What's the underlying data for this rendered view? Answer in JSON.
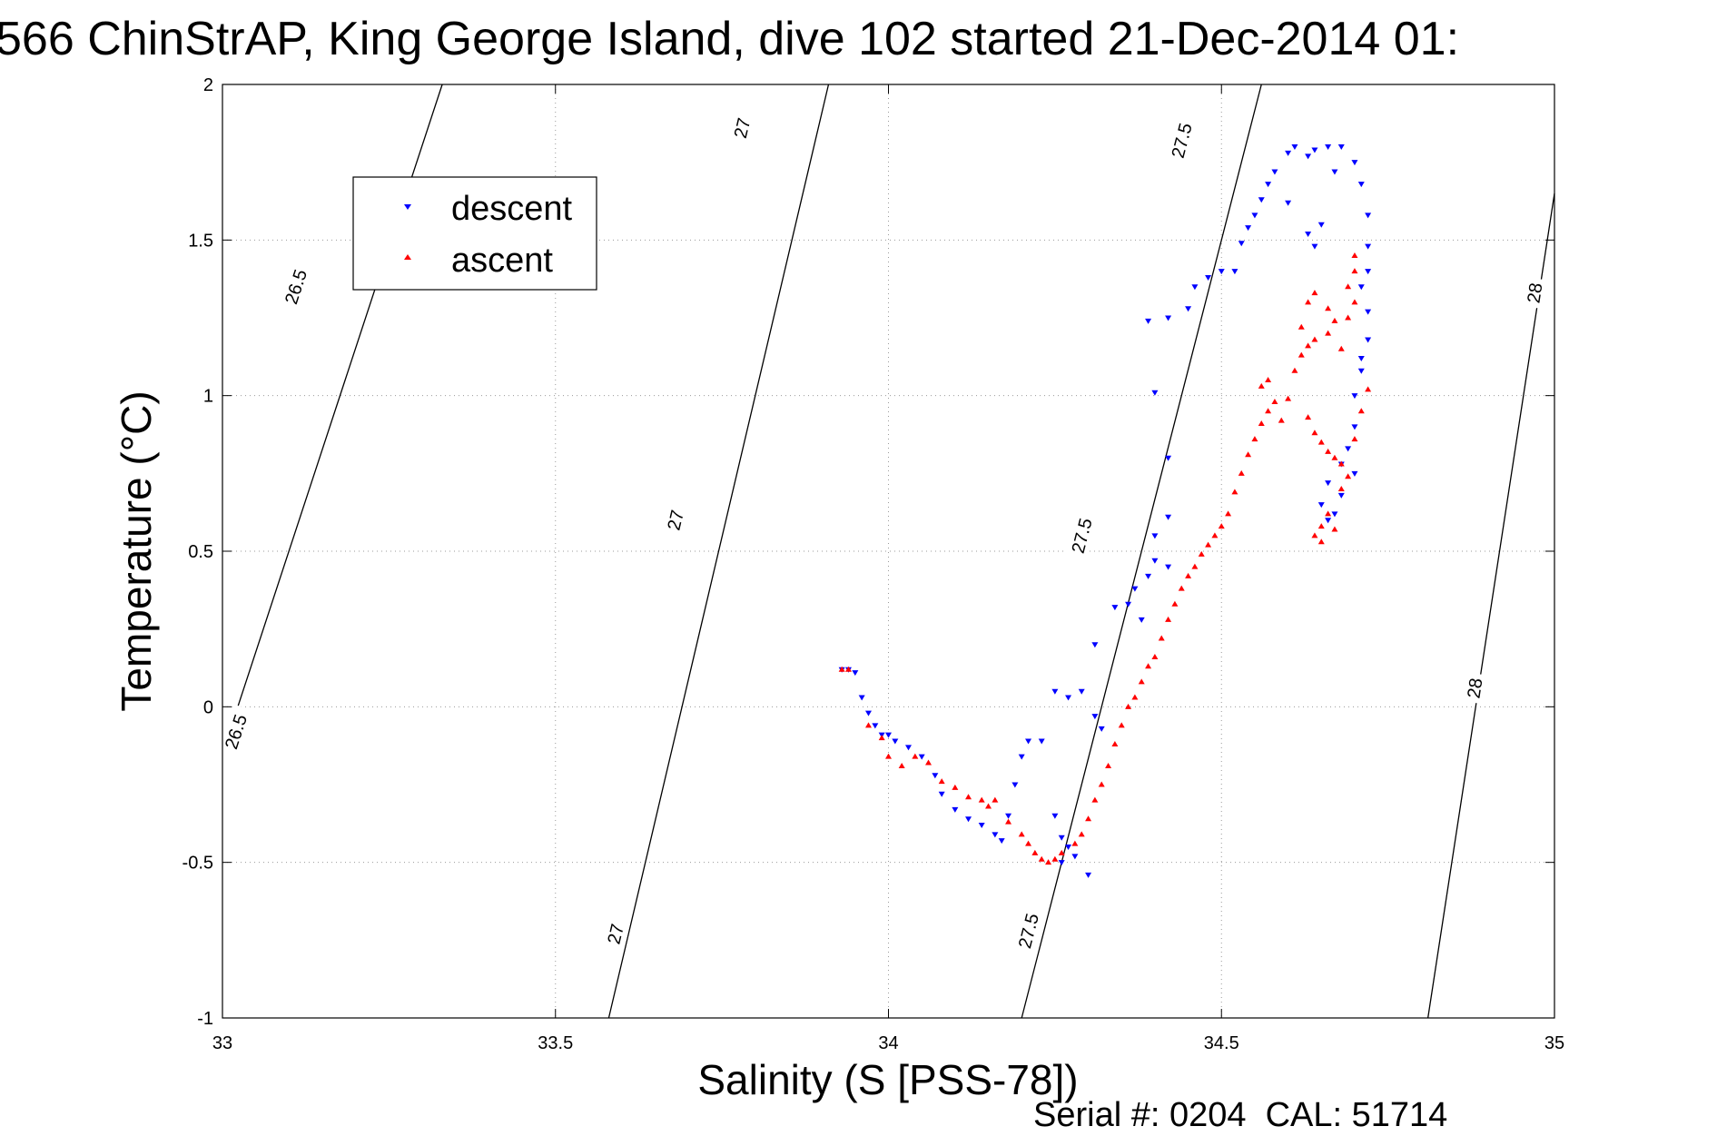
{
  "chart_data": {
    "type": "scatter",
    "title": "566 ChinStrAP, King George Island, dive 102 started 21-Dec-2014 01:",
    "xlabel": "Salinity (S [PSS-78])",
    "ylabel": "Temperature (°C)",
    "footer": "Serial #: 0204  CAL: 51714",
    "xlim": [
      33,
      35
    ],
    "ylim": [
      -1,
      2
    ],
    "xticks": [
      33,
      33.5,
      34,
      34.5,
      35
    ],
    "yticks": [
      -1,
      -0.5,
      0,
      0.5,
      1,
      1.5,
      2
    ],
    "xtick_labels": [
      "33",
      "33.5",
      "34",
      "34.5",
      "35"
    ],
    "ytick_labels": [
      "-1",
      "-0.5",
      "0",
      "0.5",
      "1",
      "1.5",
      "2"
    ],
    "grid": true,
    "legend_position": "top-left",
    "legend": [
      {
        "label": "descent",
        "color": "#0000ff",
        "marker": "triangle-down"
      },
      {
        "label": "ascent",
        "color": "#ff0000",
        "marker": "triangle-up"
      }
    ],
    "contours": [
      {
        "level": "26.5",
        "points": [
          [
            33.0,
            -0.15
          ],
          [
            33.33,
            2.0
          ]
        ],
        "labels": [
          [
            33.02,
            -0.08
          ],
          [
            33.11,
            1.35
          ]
        ]
      },
      {
        "level": "27",
        "points": [
          [
            33.58,
            -1.0
          ],
          [
            33.91,
            2.0
          ]
        ],
        "labels": [
          [
            33.59,
            -0.73
          ],
          [
            33.68,
            0.6
          ],
          [
            33.78,
            1.86
          ]
        ]
      },
      {
        "level": "27.5",
        "points": [
          [
            34.2,
            -1.0
          ],
          [
            34.56,
            2.0
          ]
        ],
        "labels": [
          [
            34.21,
            -0.72
          ],
          [
            34.29,
            0.55
          ],
          [
            34.44,
            1.82
          ]
        ]
      },
      {
        "level": "28",
        "points": [
          [
            34.81,
            -1.0
          ],
          [
            35.0,
            1.65
          ]
        ],
        "labels": [
          [
            34.88,
            0.06
          ],
          [
            34.97,
            1.33
          ]
        ]
      }
    ],
    "series": [
      {
        "name": "descent",
        "color": "#0000ff",
        "marker": "triangle-down",
        "points": [
          [
            33.93,
            0.12
          ],
          [
            33.94,
            0.12
          ],
          [
            33.95,
            0.11
          ],
          [
            33.96,
            0.03
          ],
          [
            33.97,
            -0.02
          ],
          [
            33.98,
            -0.06
          ],
          [
            33.99,
            -0.09
          ],
          [
            34.0,
            -0.09
          ],
          [
            34.01,
            -0.11
          ],
          [
            34.03,
            -0.13
          ],
          [
            34.05,
            -0.16
          ],
          [
            34.07,
            -0.22
          ],
          [
            34.08,
            -0.28
          ],
          [
            34.1,
            -0.33
          ],
          [
            34.12,
            -0.36
          ],
          [
            34.14,
            -0.38
          ],
          [
            34.16,
            -0.41
          ],
          [
            34.17,
            -0.43
          ],
          [
            34.18,
            -0.35
          ],
          [
            34.19,
            -0.25
          ],
          [
            34.2,
            -0.16
          ],
          [
            34.21,
            -0.11
          ],
          [
            34.23,
            -0.11
          ],
          [
            34.25,
            -0.35
          ],
          [
            34.26,
            -0.42
          ],
          [
            34.27,
            -0.45
          ],
          [
            34.28,
            -0.48
          ],
          [
            34.26,
            -0.5
          ],
          [
            34.3,
            -0.54
          ],
          [
            34.25,
            0.05
          ],
          [
            34.27,
            0.03
          ],
          [
            34.29,
            0.05
          ],
          [
            34.31,
            -0.03
          ],
          [
            34.32,
            -0.07
          ],
          [
            34.31,
            0.2
          ],
          [
            34.34,
            0.32
          ],
          [
            34.36,
            0.33
          ],
          [
            34.38,
            0.28
          ],
          [
            34.37,
            0.38
          ],
          [
            34.39,
            0.42
          ],
          [
            34.4,
            0.47
          ],
          [
            34.42,
            0.45
          ],
          [
            34.4,
            0.55
          ],
          [
            34.42,
            0.61
          ],
          [
            34.4,
            1.01
          ],
          [
            34.42,
            0.8
          ],
          [
            34.39,
            1.24
          ],
          [
            34.42,
            1.25
          ],
          [
            34.45,
            1.28
          ],
          [
            34.46,
            1.35
          ],
          [
            34.48,
            1.38
          ],
          [
            34.5,
            1.4
          ],
          [
            34.52,
            1.4
          ],
          [
            34.53,
            1.49
          ],
          [
            34.54,
            1.54
          ],
          [
            34.55,
            1.58
          ],
          [
            34.56,
            1.63
          ],
          [
            34.57,
            1.68
          ],
          [
            34.58,
            1.72
          ],
          [
            34.6,
            1.78
          ],
          [
            34.61,
            1.8
          ],
          [
            34.63,
            1.77
          ],
          [
            34.64,
            1.79
          ],
          [
            34.66,
            1.8
          ],
          [
            34.68,
            1.8
          ],
          [
            34.7,
            1.75
          ],
          [
            34.71,
            1.68
          ],
          [
            34.72,
            1.58
          ],
          [
            34.72,
            1.48
          ],
          [
            34.72,
            1.4
          ],
          [
            34.71,
            1.35
          ],
          [
            34.72,
            1.27
          ],
          [
            34.72,
            1.18
          ],
          [
            34.71,
            1.08
          ],
          [
            34.71,
            1.12
          ],
          [
            34.7,
            1.0
          ],
          [
            34.7,
            0.9
          ],
          [
            34.69,
            0.83
          ],
          [
            34.7,
            0.75
          ],
          [
            34.68,
            0.68
          ],
          [
            34.67,
            0.62
          ],
          [
            34.66,
            0.6
          ],
          [
            34.65,
            0.65
          ],
          [
            34.66,
            0.72
          ],
          [
            34.68,
            0.78
          ],
          [
            34.63,
            1.52
          ],
          [
            34.64,
            1.48
          ],
          [
            34.65,
            1.55
          ],
          [
            34.67,
            1.72
          ],
          [
            34.6,
            1.62
          ]
        ]
      },
      {
        "name": "ascent",
        "color": "#ff0000",
        "marker": "triangle-up",
        "points": [
          [
            33.93,
            0.12
          ],
          [
            33.94,
            0.12
          ],
          [
            33.97,
            -0.06
          ],
          [
            33.99,
            -0.1
          ],
          [
            34.0,
            -0.16
          ],
          [
            34.02,
            -0.19
          ],
          [
            34.04,
            -0.16
          ],
          [
            34.06,
            -0.18
          ],
          [
            34.08,
            -0.24
          ],
          [
            34.1,
            -0.26
          ],
          [
            34.12,
            -0.29
          ],
          [
            34.14,
            -0.3
          ],
          [
            34.15,
            -0.32
          ],
          [
            34.16,
            -0.3
          ],
          [
            34.18,
            -0.37
          ],
          [
            34.2,
            -0.41
          ],
          [
            34.21,
            -0.44
          ],
          [
            34.22,
            -0.47
          ],
          [
            34.23,
            -0.49
          ],
          [
            34.24,
            -0.5
          ],
          [
            34.25,
            -0.49
          ],
          [
            34.26,
            -0.47
          ],
          [
            34.28,
            -0.44
          ],
          [
            34.29,
            -0.41
          ],
          [
            34.3,
            -0.36
          ],
          [
            34.31,
            -0.3
          ],
          [
            34.32,
            -0.25
          ],
          [
            34.33,
            -0.19
          ],
          [
            34.34,
            -0.12
          ],
          [
            34.35,
            -0.06
          ],
          [
            34.36,
            0.0
          ],
          [
            34.37,
            0.03
          ],
          [
            34.38,
            0.08
          ],
          [
            34.39,
            0.13
          ],
          [
            34.4,
            0.16
          ],
          [
            34.41,
            0.22
          ],
          [
            34.42,
            0.28
          ],
          [
            34.43,
            0.33
          ],
          [
            34.44,
            0.38
          ],
          [
            34.45,
            0.42
          ],
          [
            34.46,
            0.45
          ],
          [
            34.47,
            0.49
          ],
          [
            34.48,
            0.52
          ],
          [
            34.49,
            0.55
          ],
          [
            34.5,
            0.58
          ],
          [
            34.51,
            0.62
          ],
          [
            34.52,
            0.69
          ],
          [
            34.53,
            0.75
          ],
          [
            34.54,
            0.81
          ],
          [
            34.55,
            0.86
          ],
          [
            34.56,
            0.91
          ],
          [
            34.57,
            0.95
          ],
          [
            34.58,
            0.98
          ],
          [
            34.59,
            0.92
          ],
          [
            34.56,
            1.03
          ],
          [
            34.57,
            1.05
          ],
          [
            34.6,
            0.99
          ],
          [
            34.61,
            1.08
          ],
          [
            34.62,
            1.13
          ],
          [
            34.63,
            1.16
          ],
          [
            34.64,
            1.18
          ],
          [
            34.66,
            1.2
          ],
          [
            34.68,
            1.15
          ],
          [
            34.69,
            1.25
          ],
          [
            34.7,
            1.3
          ],
          [
            34.7,
            1.4
          ],
          [
            34.7,
            1.45
          ],
          [
            34.69,
            1.35
          ],
          [
            34.63,
            1.3
          ],
          [
            34.64,
            1.33
          ],
          [
            34.66,
            1.28
          ],
          [
            34.67,
            1.24
          ],
          [
            34.62,
            1.22
          ],
          [
            34.63,
            0.93
          ],
          [
            34.64,
            0.88
          ],
          [
            34.65,
            0.85
          ],
          [
            34.66,
            0.82
          ],
          [
            34.67,
            0.8
          ],
          [
            34.68,
            0.78
          ],
          [
            34.69,
            0.74
          ],
          [
            34.7,
            0.86
          ],
          [
            34.71,
            0.95
          ],
          [
            34.72,
            1.02
          ],
          [
            34.68,
            0.7
          ],
          [
            34.66,
            0.62
          ],
          [
            34.65,
            0.58
          ],
          [
            34.64,
            0.55
          ],
          [
            34.65,
            0.53
          ],
          [
            34.67,
            0.57
          ]
        ]
      }
    ]
  }
}
